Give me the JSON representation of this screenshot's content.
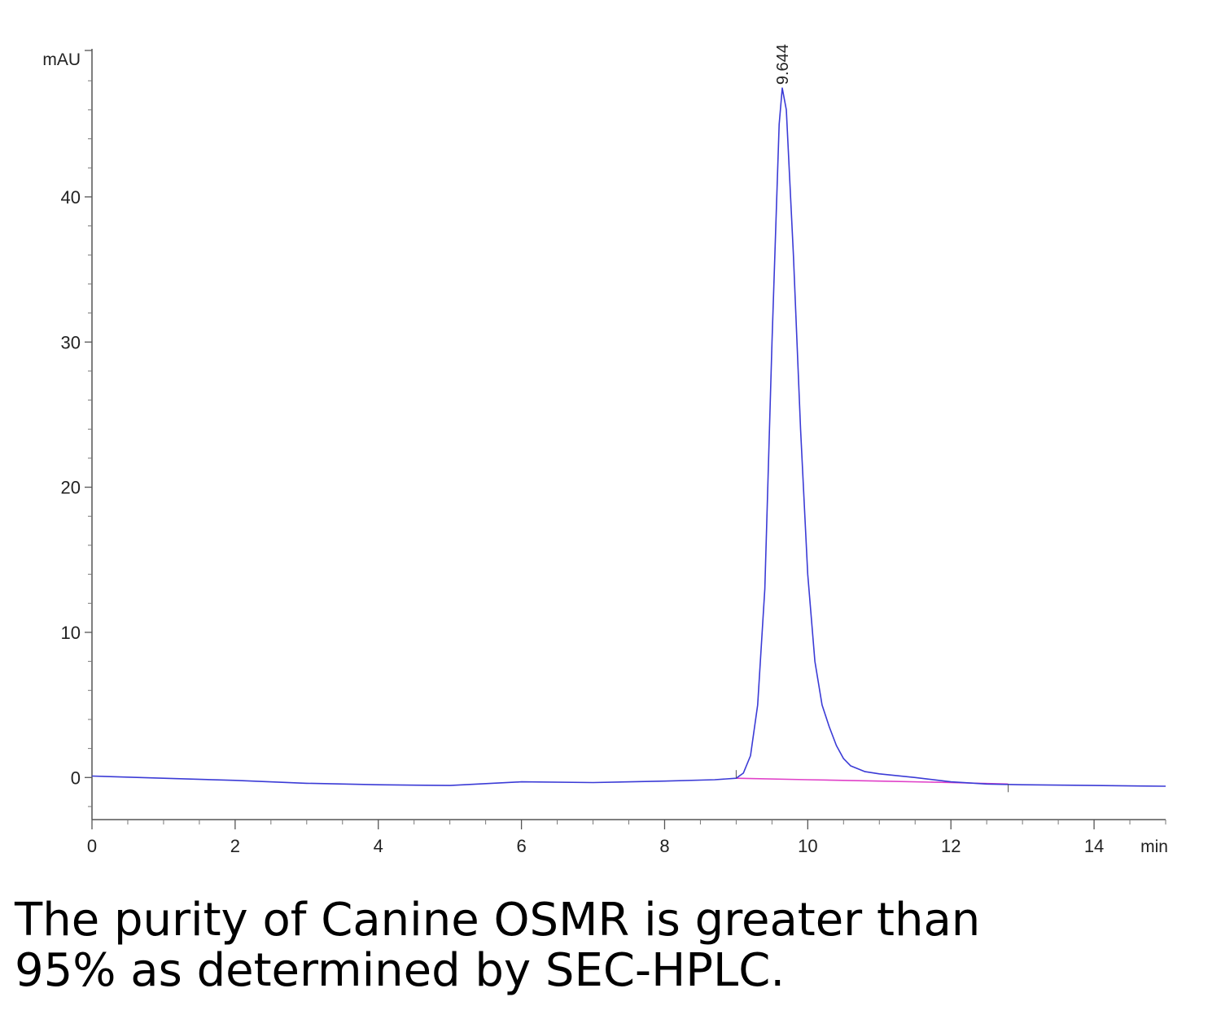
{
  "chart_data": {
    "type": "line",
    "ylabel": "mAU",
    "xlabel": "min",
    "xlim": [
      0,
      15
    ],
    "ylim": [
      -2.9,
      50.2
    ],
    "x_ticks": [
      0,
      2,
      4,
      6,
      8,
      10,
      12,
      14
    ],
    "y_ticks": [
      0,
      10,
      20,
      30,
      40
    ],
    "grid": false,
    "series": [
      {
        "color": "#3b3bd6",
        "x": [
          0,
          1,
          2,
          3,
          4,
          5,
          6,
          7,
          8,
          8.7,
          9.0,
          9.1,
          9.2,
          9.3,
          9.4,
          9.5,
          9.6,
          9.644,
          9.7,
          9.8,
          9.9,
          10.0,
          10.1,
          10.2,
          10.3,
          10.4,
          10.5,
          10.6,
          10.8,
          11.0,
          11.5,
          12.0,
          12.5,
          13.0,
          14.0,
          15.0
        ],
        "y": [
          0.1,
          -0.05,
          -0.2,
          -0.4,
          -0.5,
          -0.55,
          -0.3,
          -0.35,
          -0.25,
          -0.15,
          -0.05,
          0.3,
          1.5,
          5.0,
          13.0,
          30.0,
          45.0,
          47.5,
          46.0,
          36.0,
          24.0,
          14.0,
          8.0,
          5.0,
          3.5,
          2.2,
          1.3,
          0.8,
          0.4,
          0.25,
          0.0,
          -0.3,
          -0.45,
          -0.5,
          -0.55,
          -0.6
        ]
      },
      {
        "color": "#e040c8",
        "x": [
          9.0,
          10.0,
          11.0,
          12.0,
          12.8
        ],
        "y": [
          -0.05,
          -0.15,
          -0.25,
          -0.35,
          -0.45
        ]
      }
    ],
    "annotations": [
      {
        "text": "9.644",
        "x": 9.644,
        "y": 47.5
      }
    ]
  },
  "caption": {
    "line1": "The purity of Canine OSMR is greater than",
    "line2": "95% as determined by SEC-HPLC."
  }
}
